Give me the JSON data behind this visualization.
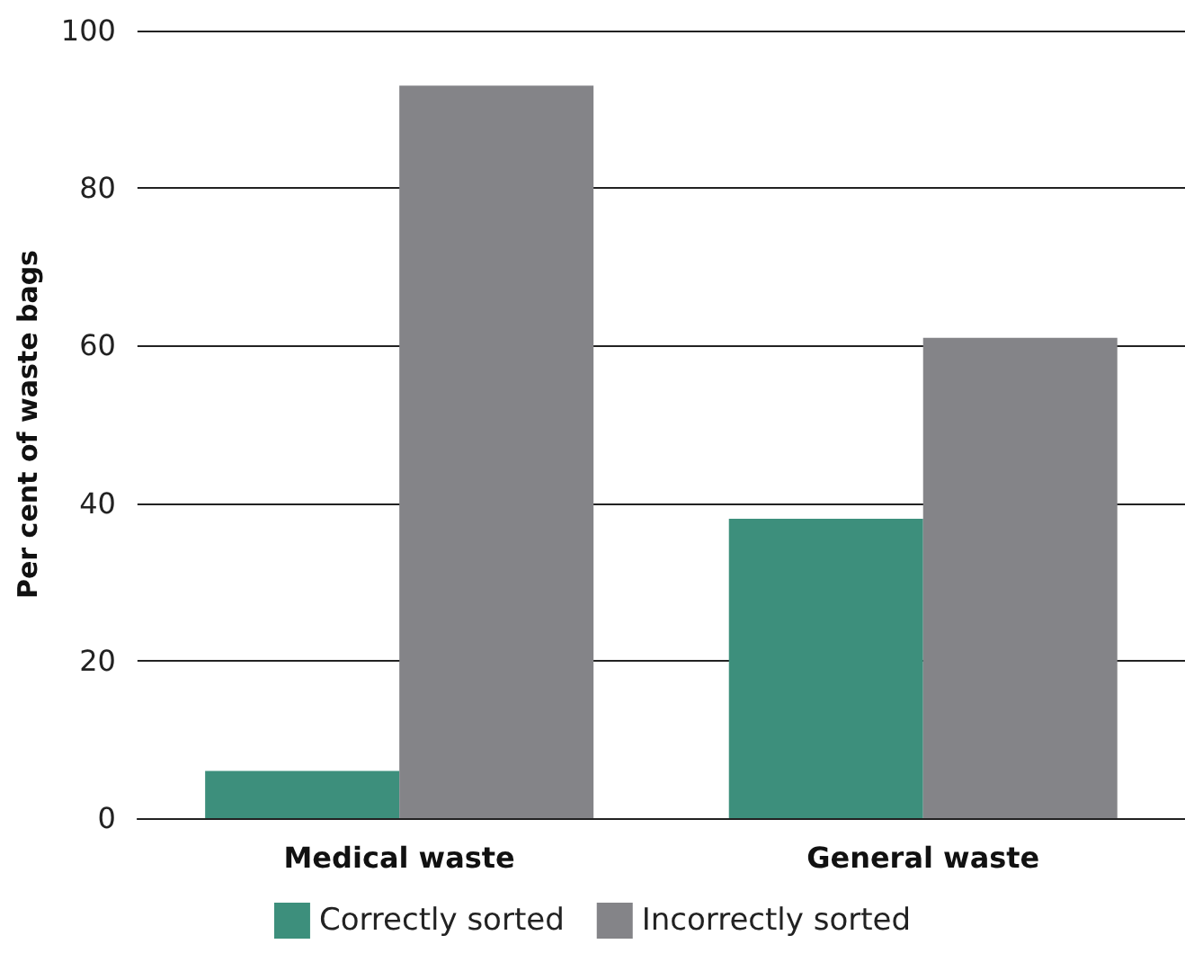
{
  "chart_data": {
    "type": "bar",
    "ylabel": "Per cent of waste bags",
    "categories": [
      "Medical waste",
      "General waste"
    ],
    "series": [
      {
        "name": "Correctly sorted",
        "color": "#3d8f7c",
        "values": [
          6,
          38
        ]
      },
      {
        "name": "Incorrectly sorted",
        "color": "#848488",
        "values": [
          93,
          61
        ]
      }
    ],
    "ylim": [
      0,
      100
    ],
    "yticks": [
      0,
      20,
      40,
      60,
      80,
      100
    ],
    "grid": "y",
    "legend": "bottom"
  }
}
